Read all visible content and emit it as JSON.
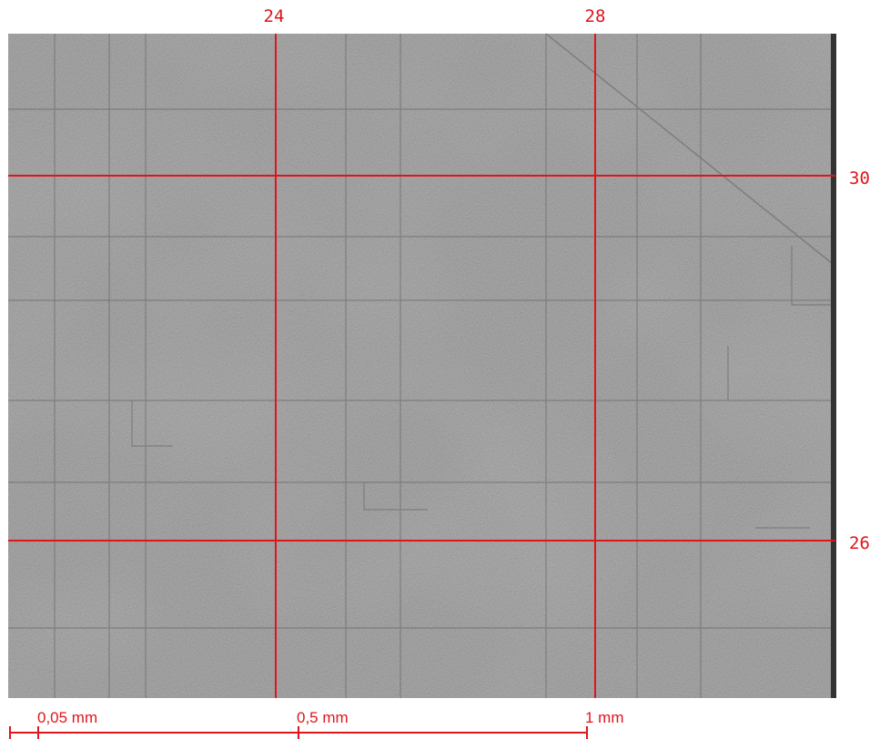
{
  "grid": {
    "columns": [
      "24",
      "28"
    ],
    "rows": [
      "30",
      "26"
    ]
  },
  "scale_bar": {
    "labels": [
      "0,05 mm",
      "0,5 mm",
      "1 mm"
    ]
  }
}
